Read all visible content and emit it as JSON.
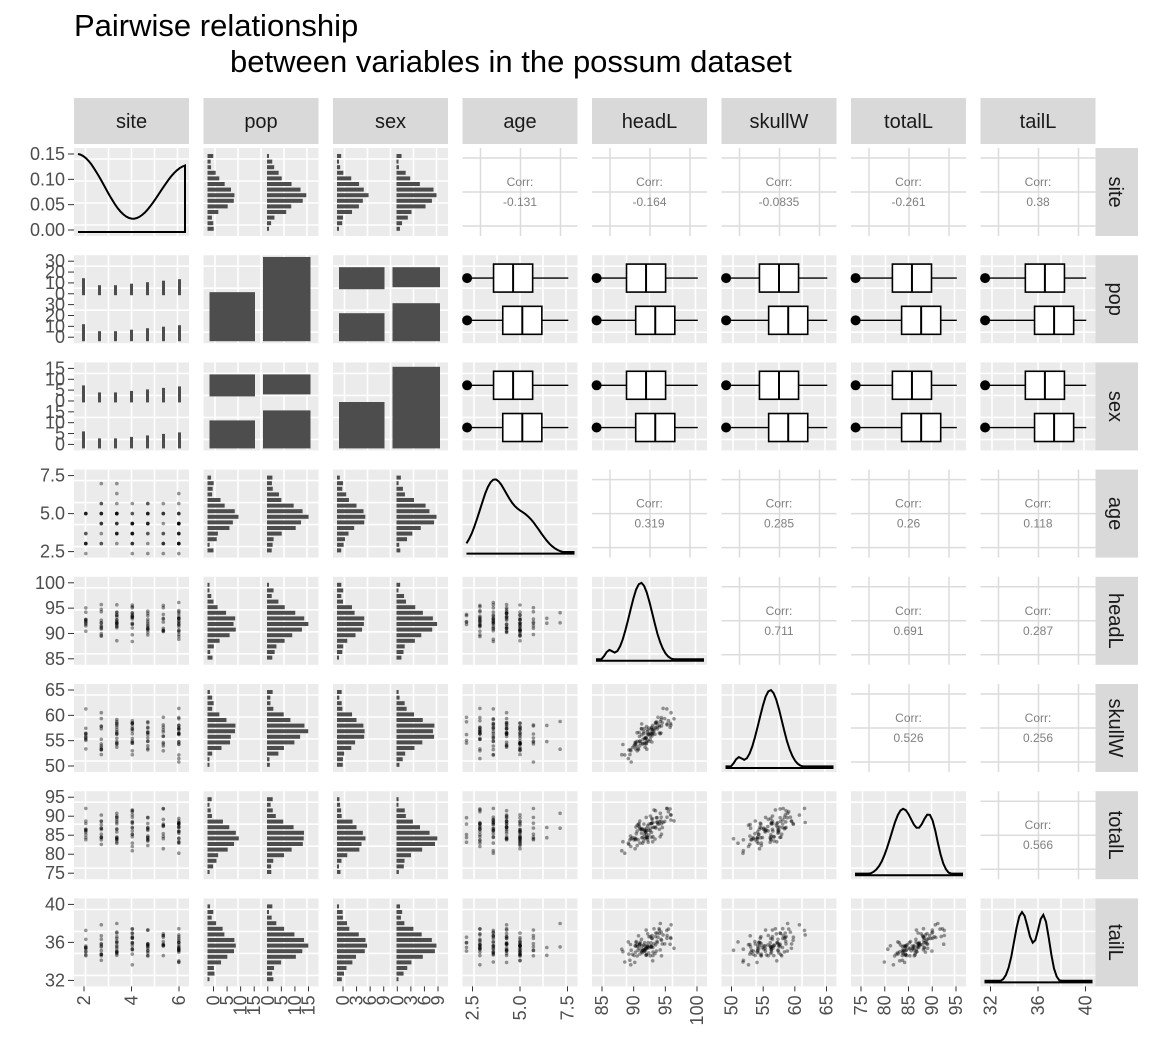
{
  "title": {
    "line1": "Pairwise relationship",
    "line2": "between variables in the possum dataset"
  },
  "variables": [
    "site",
    "pop",
    "sex",
    "age",
    "headL",
    "skullW",
    "totalL",
    "tailL"
  ],
  "chart_data": {
    "type": "scatterplot-matrix",
    "title": "Pairwise relationship between variables in the possum dataset",
    "variables": [
      "site",
      "pop",
      "sex",
      "age",
      "headL",
      "skullW",
      "totalL",
      "tailL"
    ],
    "correlations": [
      {
        "row": "site",
        "col": "age",
        "label": "Corr:",
        "value": "-0.131"
      },
      {
        "row": "site",
        "col": "headL",
        "label": "Corr:",
        "value": "-0.164"
      },
      {
        "row": "site",
        "col": "skullW",
        "label": "Corr:",
        "value": "-0.0835"
      },
      {
        "row": "site",
        "col": "totalL",
        "label": "Corr:",
        "value": "-0.261"
      },
      {
        "row": "site",
        "col": "tailL",
        "label": "Corr:",
        "value": "0.38"
      },
      {
        "row": "age",
        "col": "headL",
        "label": "Corr:",
        "value": "0.319"
      },
      {
        "row": "age",
        "col": "skullW",
        "label": "Corr:",
        "value": "0.285"
      },
      {
        "row": "age",
        "col": "totalL",
        "label": "Corr:",
        "value": "0.26"
      },
      {
        "row": "age",
        "col": "tailL",
        "label": "Corr:",
        "value": "0.118"
      },
      {
        "row": "headL",
        "col": "skullW",
        "label": "Corr:",
        "value": "0.711"
      },
      {
        "row": "headL",
        "col": "totalL",
        "label": "Corr:",
        "value": "0.691"
      },
      {
        "row": "headL",
        "col": "tailL",
        "label": "Corr:",
        "value": "0.287"
      },
      {
        "row": "skullW",
        "col": "totalL",
        "label": "Corr:",
        "value": "0.526"
      },
      {
        "row": "skullW",
        "col": "tailL",
        "label": "Corr:",
        "value": "0.256"
      },
      {
        "row": "totalL",
        "col": "tailL",
        "label": "Corr:",
        "value": "0.566"
      }
    ],
    "y_ticks": {
      "site": [
        "0.00",
        "0.05",
        "0.10",
        "0.15"
      ],
      "pop": [
        "0",
        "10",
        "20",
        "30",
        "0",
        "10",
        "20",
        "30"
      ],
      "sex": [
        "0",
        "5",
        "10",
        "15",
        "0",
        "5",
        "10",
        "15"
      ],
      "age": [
        "2.5",
        "5.0",
        "7.5"
      ],
      "headL": [
        "85",
        "90",
        "95",
        "100"
      ],
      "skullW": [
        "50",
        "55",
        "60",
        "65"
      ],
      "totalL": [
        "75",
        "80",
        "85",
        "90",
        "95"
      ],
      "tailL": [
        "32",
        "36",
        "40"
      ]
    },
    "x_ticks": {
      "site": [
        "2",
        "4",
        "6"
      ],
      "pop": [
        "0",
        "5",
        "10",
        "15",
        "0",
        "5",
        "10",
        "15"
      ],
      "sex": [
        "0",
        "3",
        "6",
        "9",
        "0",
        "3",
        "6",
        "9"
      ],
      "age": [
        "2.5",
        "5.0",
        "7.5"
      ],
      "headL": [
        "85",
        "90",
        "95",
        "100"
      ],
      "skullW": [
        "50",
        "55",
        "60",
        "65"
      ],
      "totalL": [
        "75",
        "80",
        "85",
        "90",
        "95"
      ],
      "tailL": [
        "32",
        "36",
        "40"
      ]
    },
    "axis_ranges": {
      "site": [
        0.5,
        7.4
      ],
      "age": [
        1,
        9
      ],
      "headL": [
        82,
        104
      ],
      "skullW": [
        49,
        69
      ],
      "totalL": [
        74,
        97
      ],
      "tailL": [
        31.5,
        43.5
      ]
    },
    "grid": true,
    "panel_background": "#ebebeb",
    "strip_background": "#d9d9d9",
    "mark_color": "#333333"
  },
  "colors": {
    "panel": "#ebebeb",
    "strip": "#d9d9d9",
    "ink": "#000000",
    "bar": "#4d4d4d",
    "corr_text": "#7f7f7f"
  }
}
